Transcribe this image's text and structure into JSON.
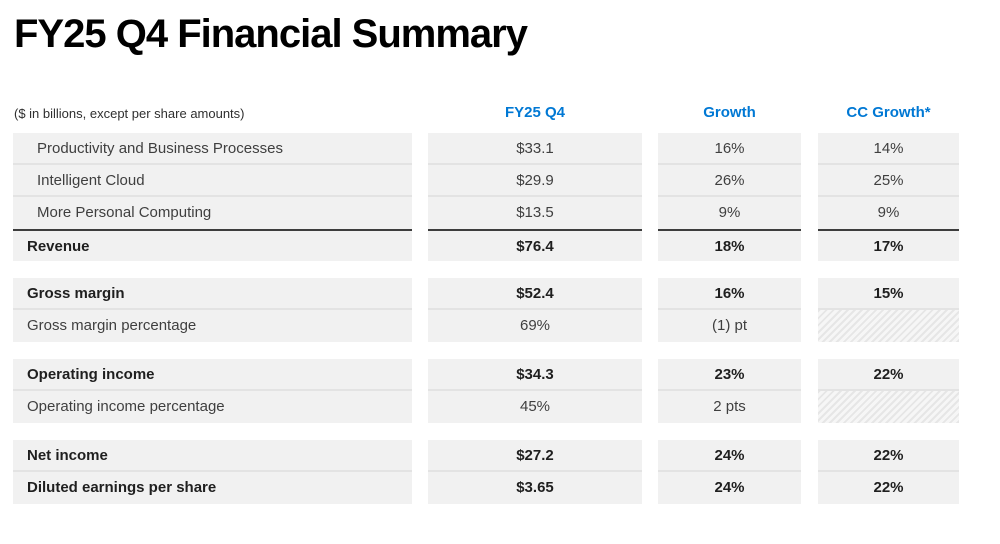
{
  "title": "FY25 Q4 Financial Summary",
  "units_note": "($ in billions, except per share amounts)",
  "colors": {
    "accent": "#0078d4",
    "row_background": "#f1f1f1",
    "row_separator": "#e3e3e3",
    "total_rule": "#3d3d3d",
    "text": "#3f3f3f",
    "text_bold": "#1f1f1f"
  },
  "columns": [
    "FY25 Q4",
    "Growth",
    "CC Growth*"
  ],
  "table": {
    "sections": [
      {
        "name": "revenue",
        "rows": [
          {
            "label": "Productivity and Business Processes",
            "indent": true,
            "bold": false,
            "total": false,
            "values": [
              "$33.1",
              "16%",
              "14%"
            ]
          },
          {
            "label": "Intelligent Cloud",
            "indent": true,
            "bold": false,
            "total": false,
            "values": [
              "$29.9",
              "26%",
              "25%"
            ]
          },
          {
            "label": "More Personal Computing",
            "indent": true,
            "bold": false,
            "total": false,
            "values": [
              "$13.5",
              "9%",
              "9%"
            ]
          },
          {
            "label": "Revenue",
            "indent": false,
            "bold": true,
            "total": true,
            "values": [
              "$76.4",
              "18%",
              "17%"
            ]
          }
        ]
      },
      {
        "name": "gross-margin",
        "rows": [
          {
            "label": "Gross margin",
            "indent": false,
            "bold": true,
            "total": false,
            "values": [
              "$52.4",
              "16%",
              "15%"
            ]
          },
          {
            "label": "Gross margin percentage",
            "indent": false,
            "bold": false,
            "total": false,
            "values": [
              "69%",
              "(1) pt",
              null
            ]
          }
        ]
      },
      {
        "name": "operating-income",
        "rows": [
          {
            "label": "Operating income",
            "indent": false,
            "bold": true,
            "total": false,
            "values": [
              "$34.3",
              "23%",
              "22%"
            ]
          },
          {
            "label": "Operating income percentage",
            "indent": false,
            "bold": false,
            "total": false,
            "values": [
              "45%",
              "2 pts",
              null
            ]
          }
        ]
      },
      {
        "name": "net-income",
        "rows": [
          {
            "label": "Net income",
            "indent": false,
            "bold": true,
            "total": false,
            "values": [
              "$27.2",
              "24%",
              "22%"
            ]
          },
          {
            "label": "Diluted earnings per share",
            "indent": false,
            "bold": true,
            "total": false,
            "values": [
              "$3.65",
              "24%",
              "22%"
            ]
          }
        ]
      }
    ]
  }
}
